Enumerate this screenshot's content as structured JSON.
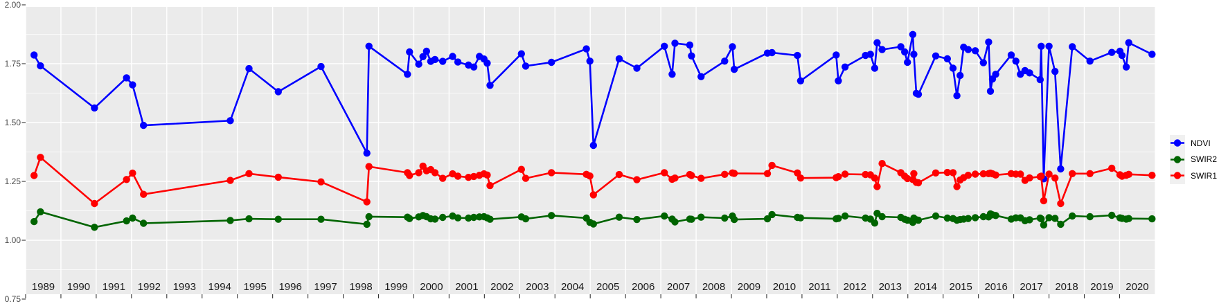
{
  "colors": {
    "panel_background": "#EBEBEB",
    "grid": "#FFFFFF",
    "tick": "#333333",
    "axis_text": "#4A4A4A",
    "year_text": "#1A1A1A",
    "legend_key_background": "#F0F0F0",
    "ndvi": "#0000FF",
    "swir2": "#006400",
    "swir1": "#FF0000"
  },
  "chart_data": {
    "type": "line",
    "title": "",
    "xlabel": "",
    "ylabel": "",
    "grid": true,
    "legend_position": "right",
    "xlim": [
      1989,
      2021
    ],
    "ylim": [
      0.75,
      2.0
    ],
    "x_years": [
      1989,
      1990,
      1991,
      1992,
      1993,
      1994,
      1995,
      1996,
      1997,
      1998,
      1999,
      2000,
      2001,
      2002,
      2003,
      2004,
      2005,
      2006,
      2007,
      2008,
      2009,
      2010,
      2011,
      2012,
      2013,
      2014,
      2015,
      2016,
      2017,
      2018,
      2019,
      2020
    ],
    "y_ticks": [
      {
        "label": "2.00",
        "value": 2.0
      },
      {
        "label": "1.75",
        "value": 1.75
      },
      {
        "label": "1.50",
        "value": 1.5
      },
      {
        "label": "1.25",
        "value": 1.25
      },
      {
        "label": "1.00",
        "value": 1.0
      },
      {
        "label": "0.75",
        "value": 0.75
      }
    ],
    "y_minor_ticks": [
      0.875,
      1.125,
      1.375,
      1.625,
      1.875
    ],
    "x": [
      1989.24,
      1989.42,
      1990.95,
      1991.86,
      1992.03,
      1992.34,
      1994.8,
      1995.33,
      1996.16,
      1997.37,
      1998.67,
      1998.73,
      1999.82,
      1999.88,
      2000.14,
      2000.26,
      2000.36,
      2000.48,
      2000.6,
      2000.82,
      2001.1,
      2001.25,
      2001.55,
      2001.7,
      2001.86,
      2001.99,
      2002.08,
      2002.16,
      2003.05,
      2003.17,
      2003.9,
      2004.89,
      2004.99,
      2005.09,
      2005.82,
      2006.32,
      2007.1,
      2007.32,
      2007.4,
      2007.82,
      2007.87,
      2008.14,
      2008.81,
      2009.03,
      2009.08,
      2010.02,
      2010.15,
      2010.87,
      2010.96,
      2011.97,
      2012.03,
      2012.22,
      2012.8,
      2012.94,
      2013.06,
      2013.13,
      2013.27,
      2013.8,
      2013.91,
      2013.99,
      2014.14,
      2014.17,
      2014.24,
      2014.3,
      2014.79,
      2015.12,
      2015.28,
      2015.39,
      2015.48,
      2015.58,
      2015.71,
      2015.91,
      2016.14,
      2016.29,
      2016.34,
      2016.4,
      2016.49,
      2016.93,
      2017.06,
      2017.19,
      2017.32,
      2017.45,
      2017.75,
      2017.78,
      2017.85,
      2018.0,
      2018.17,
      2018.33,
      2018.66,
      2019.16,
      2019.78,
      2020.01,
      2020.07,
      2020.19,
      2020.26,
      2020.92
    ],
    "series": [
      {
        "name": "NDVI",
        "color": "#0000FF",
        "values": [
          1.787,
          1.741,
          1.562,
          1.69,
          1.66,
          1.488,
          1.508,
          1.729,
          1.631,
          1.738,
          1.37,
          1.824,
          1.705,
          1.8,
          1.748,
          1.78,
          1.803,
          1.76,
          1.768,
          1.76,
          1.781,
          1.757,
          1.744,
          1.736,
          1.781,
          1.77,
          1.752,
          1.658,
          1.792,
          1.74,
          1.756,
          1.813,
          1.761,
          1.403,
          1.771,
          1.731,
          1.824,
          1.705,
          1.837,
          1.829,
          1.783,
          1.695,
          1.761,
          1.822,
          1.726,
          1.795,
          1.797,
          1.785,
          1.677,
          1.787,
          1.677,
          1.736,
          1.785,
          1.79,
          1.731,
          1.839,
          1.81,
          1.822,
          1.8,
          1.756,
          1.874,
          1.79,
          1.624,
          1.62,
          1.783,
          1.771,
          1.731,
          1.614,
          1.7,
          1.82,
          1.81,
          1.805,
          1.754,
          1.842,
          1.633,
          1.685,
          1.705,
          1.787,
          1.761,
          1.705,
          1.721,
          1.711,
          1.682,
          1.824,
          1.261,
          1.824,
          1.717,
          1.303,
          1.822,
          1.761,
          1.798,
          1.803,
          1.785,
          1.736,
          1.839,
          1.79
        ]
      },
      {
        "name": "SWIR2",
        "color": "#006400",
        "values": [
          1.079,
          1.121,
          1.055,
          1.082,
          1.094,
          1.072,
          1.084,
          1.091,
          1.089,
          1.089,
          1.068,
          1.1,
          1.098,
          1.092,
          1.099,
          1.105,
          1.1,
          1.091,
          1.09,
          1.097,
          1.103,
          1.095,
          1.094,
          1.097,
          1.099,
          1.1,
          1.095,
          1.089,
          1.099,
          1.091,
          1.105,
          1.094,
          1.076,
          1.069,
          1.098,
          1.088,
          1.103,
          1.09,
          1.078,
          1.09,
          1.089,
          1.098,
          1.094,
          1.103,
          1.088,
          1.091,
          1.109,
          1.097,
          1.095,
          1.091,
          1.093,
          1.103,
          1.094,
          1.09,
          1.073,
          1.114,
          1.1,
          1.097,
          1.089,
          1.085,
          1.076,
          1.094,
          1.087,
          1.085,
          1.103,
          1.094,
          1.092,
          1.085,
          1.088,
          1.09,
          1.092,
          1.096,
          1.1,
          1.099,
          1.112,
          1.108,
          1.105,
          1.09,
          1.095,
          1.095,
          1.083,
          1.087,
          1.094,
          1.091,
          1.065,
          1.096,
          1.093,
          1.068,
          1.103,
          1.1,
          1.106,
          1.095,
          1.093,
          1.09,
          1.092,
          1.091
        ]
      },
      {
        "name": "SWIR1",
        "color": "#FF0000",
        "values": [
          1.275,
          1.352,
          1.156,
          1.258,
          1.285,
          1.195,
          1.254,
          1.283,
          1.268,
          1.248,
          1.163,
          1.313,
          1.287,
          1.275,
          1.287,
          1.315,
          1.295,
          1.3,
          1.287,
          1.263,
          1.282,
          1.272,
          1.267,
          1.271,
          1.276,
          1.282,
          1.277,
          1.232,
          1.301,
          1.263,
          1.287,
          1.28,
          1.273,
          1.193,
          1.279,
          1.257,
          1.287,
          1.259,
          1.264,
          1.279,
          1.275,
          1.263,
          1.28,
          1.286,
          1.284,
          1.283,
          1.318,
          1.286,
          1.264,
          1.266,
          1.27,
          1.281,
          1.279,
          1.278,
          1.264,
          1.228,
          1.326,
          1.287,
          1.272,
          1.262,
          1.258,
          1.283,
          1.246,
          1.244,
          1.286,
          1.288,
          1.287,
          1.228,
          1.256,
          1.266,
          1.276,
          1.281,
          1.282,
          1.283,
          1.285,
          1.282,
          1.277,
          1.283,
          1.281,
          1.281,
          1.254,
          1.265,
          1.27,
          1.272,
          1.168,
          1.281,
          1.264,
          1.156,
          1.283,
          1.283,
          1.306,
          1.278,
          1.272,
          1.276,
          1.28,
          1.276
        ]
      }
    ]
  }
}
